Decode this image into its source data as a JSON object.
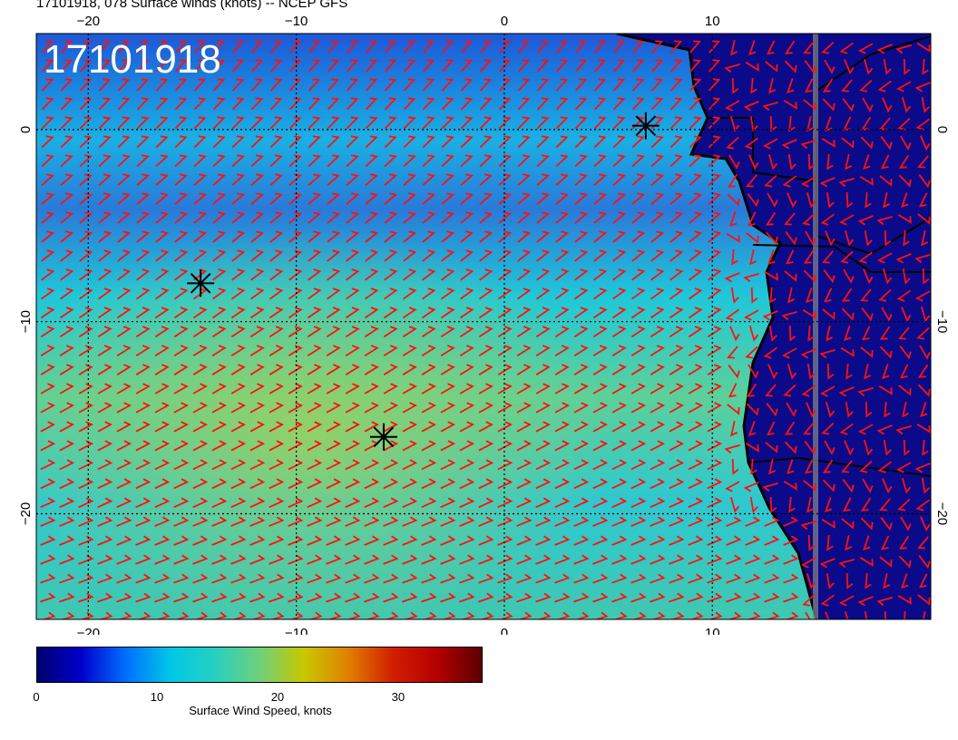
{
  "header": {
    "title": "17101918, 078 Surface winds (knots) -- NCEP GFS",
    "stamp": "17101918"
  },
  "map": {
    "lon_range": [
      -22.5,
      20.5
    ],
    "lat_range": [
      -25.5,
      5
    ],
    "lon_ticks": [
      {
        "value": -20,
        "label": "−20"
      },
      {
        "value": -10,
        "label": "−10"
      },
      {
        "value": 0,
        "label": "0"
      },
      {
        "value": 10,
        "label": "10"
      }
    ],
    "lat_ticks": [
      {
        "value": 0,
        "label": "0"
      },
      {
        "value": -10,
        "label": "−10"
      },
      {
        "value": -20,
        "label": "−20"
      }
    ],
    "markers": [
      {
        "lon": -14.6,
        "lat": -8.0
      },
      {
        "lon": -5.8,
        "lat": -16.0
      },
      {
        "lon": 6.8,
        "lat": 0.2
      }
    ],
    "barb_color": "#ff1010",
    "land_color": "#0a0a8a",
    "coast_color": "#000000"
  },
  "colorbar": {
    "label": "Surface Wind Speed, knots",
    "ticks": [
      {
        "value": 0,
        "label": "0"
      },
      {
        "value": 10,
        "label": "10"
      },
      {
        "value": 20,
        "label": "20"
      },
      {
        "value": 30,
        "label": "30"
      }
    ],
    "range": [
      0,
      37
    ],
    "colors": [
      "#00006e",
      "#0000cd",
      "#0070ff",
      "#00c8e6",
      "#26d0c0",
      "#6fd07a",
      "#c8c800",
      "#e08000",
      "#d21e00",
      "#b40000",
      "#5a0000"
    ]
  }
}
